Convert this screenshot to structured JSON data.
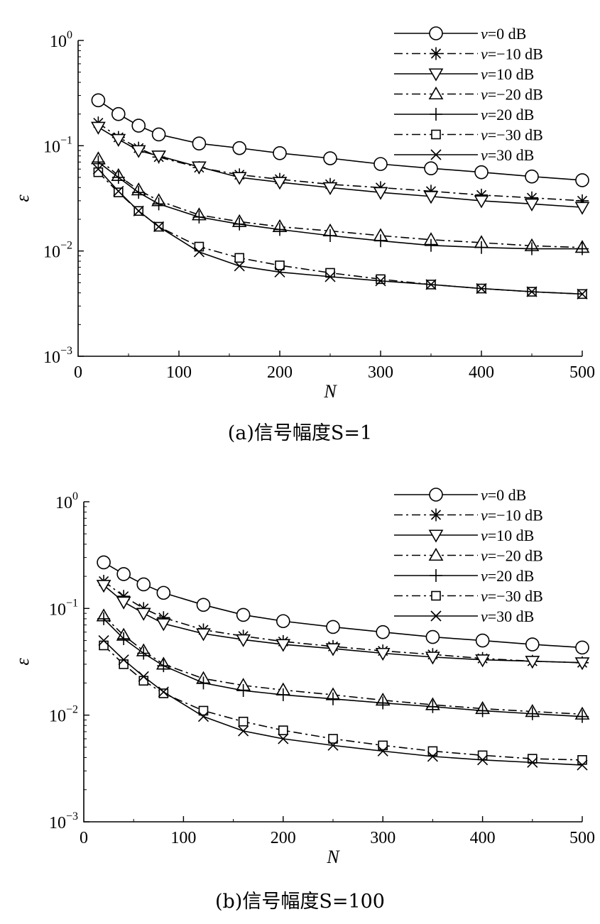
{
  "chart_data": [
    {
      "type": "line",
      "caption": "(a)信号幅度S=1",
      "xlabel": "N",
      "ylabel": "ε",
      "xlim": [
        0,
        500
      ],
      "ylim": [
        0.001,
        1
      ],
      "yscale": "log",
      "xticks": [
        "0",
        "100",
        "200",
        "300",
        "400",
        "500"
      ],
      "yticks": [
        {
          "base": "10",
          "exp": "0"
        },
        {
          "base": "10",
          "exp": "−1"
        },
        {
          "base": "10",
          "exp": "−2"
        },
        {
          "base": "10",
          "exp": "−3"
        }
      ],
      "legend_position": "top-right",
      "x": [
        20,
        40,
        60,
        80,
        120,
        160,
        200,
        250,
        300,
        350,
        400,
        450,
        500
      ],
      "series": [
        {
          "name": "v=0 dB",
          "name_var": "v",
          "name_rest": "=0 dB",
          "marker": "circle",
          "linestyle": "solid",
          "values": [
            0.27,
            0.2,
            0.155,
            0.128,
            0.105,
            0.095,
            0.085,
            0.076,
            0.067,
            0.061,
            0.056,
            0.051,
            0.047
          ]
        },
        {
          "name": "v=−10 dB",
          "name_var": "v",
          "name_rest": "=−10 dB",
          "marker": "asterisk",
          "linestyle": "dashdot",
          "values": [
            0.165,
            0.12,
            0.095,
            0.078,
            0.062,
            0.053,
            0.048,
            0.043,
            0.04,
            0.037,
            0.034,
            0.032,
            0.03
          ]
        },
        {
          "name": "v=10 dB",
          "name_var": "v",
          "name_rest": "=10 dB",
          "marker": "triangle-down",
          "linestyle": "solid",
          "values": [
            0.15,
            0.115,
            0.09,
            0.08,
            0.063,
            0.05,
            0.045,
            0.04,
            0.036,
            0.033,
            0.03,
            0.028,
            0.026
          ]
        },
        {
          "name": "v=−20 dB",
          "name_var": "v",
          "name_rest": "=−20 dB",
          "marker": "triangle-up",
          "linestyle": "dashdot",
          "values": [
            0.075,
            0.052,
            0.038,
            0.03,
            0.022,
            0.019,
            0.017,
            0.0155,
            0.014,
            0.0128,
            0.012,
            0.0112,
            0.0108
          ]
        },
        {
          "name": "v=20 dB",
          "name_var": "v",
          "name_rest": "=20 dB",
          "marker": "plus",
          "linestyle": "solid",
          "values": [
            0.07,
            0.05,
            0.036,
            0.028,
            0.021,
            0.018,
            0.016,
            0.014,
            0.0125,
            0.0113,
            0.0108,
            0.0105,
            0.0105
          ]
        },
        {
          "name": "v=−30 dB",
          "name_var": "v",
          "name_rest": "=−30 dB",
          "marker": "square",
          "linestyle": "dashdot",
          "values": [
            0.056,
            0.036,
            0.024,
            0.017,
            0.011,
            0.0086,
            0.0073,
            0.0062,
            0.0054,
            0.0048,
            0.0044,
            0.0041,
            0.0039
          ]
        },
        {
          "name": "v=30 dB",
          "name_var": "v",
          "name_rest": "=30 dB",
          "marker": "x",
          "linestyle": "solid",
          "values": [
            0.06,
            0.037,
            0.024,
            0.017,
            0.0098,
            0.0072,
            0.0063,
            0.0057,
            0.0052,
            0.0048,
            0.0044,
            0.0041,
            0.0039
          ]
        }
      ]
    },
    {
      "type": "line",
      "caption": "(b)信号幅度S=100",
      "xlabel": "N",
      "ylabel": "ε",
      "xlim": [
        0,
        500
      ],
      "ylim": [
        0.001,
        1
      ],
      "yscale": "log",
      "xticks": [
        "0",
        "100",
        "200",
        "300",
        "400",
        "500"
      ],
      "yticks": [
        {
          "base": "10",
          "exp": "0"
        },
        {
          "base": "10",
          "exp": "−1"
        },
        {
          "base": "10",
          "exp": "−2"
        },
        {
          "base": "10",
          "exp": "−3"
        }
      ],
      "legend_position": "top-right",
      "x": [
        20,
        40,
        60,
        80,
        120,
        160,
        200,
        250,
        300,
        350,
        400,
        450,
        500
      ],
      "series": [
        {
          "name": "v=0 dB",
          "name_var": "v",
          "name_rest": "=0 dB",
          "marker": "circle",
          "linestyle": "solid",
          "values": [
            0.27,
            0.21,
            0.168,
            0.14,
            0.108,
            0.087,
            0.076,
            0.067,
            0.06,
            0.054,
            0.05,
            0.046,
            0.043
          ]
        },
        {
          "name": "v=−10 dB",
          "name_var": "v",
          "name_rest": "=−10 dB",
          "marker": "asterisk",
          "linestyle": "dashdot",
          "values": [
            0.18,
            0.13,
            0.1,
            0.082,
            0.063,
            0.055,
            0.049,
            0.044,
            0.04,
            0.037,
            0.034,
            0.032,
            0.031
          ]
        },
        {
          "name": "v=10 dB",
          "name_var": "v",
          "name_rest": "=10 dB",
          "marker": "triangle-down",
          "linestyle": "solid",
          "values": [
            0.165,
            0.115,
            0.09,
            0.072,
            0.058,
            0.051,
            0.046,
            0.042,
            0.038,
            0.035,
            0.033,
            0.032,
            0.031
          ]
        },
        {
          "name": "v=−20 dB",
          "name_var": "v",
          "name_rest": "=−20 dB",
          "marker": "triangle-up",
          "linestyle": "dashdot",
          "values": [
            0.085,
            0.056,
            0.04,
            0.03,
            0.022,
            0.019,
            0.0172,
            0.0155,
            0.0138,
            0.0125,
            0.0115,
            0.0108,
            0.0102
          ]
        },
        {
          "name": "v=20 dB",
          "name_var": "v",
          "name_rest": "=20 dB",
          "marker": "plus",
          "linestyle": "solid",
          "values": [
            0.08,
            0.052,
            0.038,
            0.029,
            0.02,
            0.017,
            0.0155,
            0.0142,
            0.013,
            0.012,
            0.011,
            0.0103,
            0.0097
          ]
        },
        {
          "name": "v=−30 dB",
          "name_var": "v",
          "name_rest": "=−30 dB",
          "marker": "square",
          "linestyle": "dashdot",
          "values": [
            0.045,
            0.03,
            0.021,
            0.016,
            0.011,
            0.0087,
            0.0072,
            0.006,
            0.0052,
            0.0046,
            0.0042,
            0.0039,
            0.0038
          ]
        },
        {
          "name": "v=30 dB",
          "name_var": "v",
          "name_rest": "=30 dB",
          "marker": "x",
          "linestyle": "solid",
          "values": [
            0.05,
            0.033,
            0.023,
            0.0165,
            0.0097,
            0.0071,
            0.006,
            0.0052,
            0.0046,
            0.0041,
            0.0038,
            0.0036,
            0.0034
          ]
        }
      ]
    }
  ]
}
